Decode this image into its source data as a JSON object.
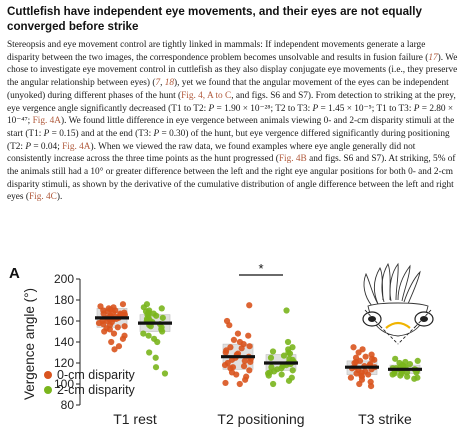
{
  "heading": "Cuttlefish have independent eye movements, and their eyes are not equally converged before strike",
  "paragraph": [
    {
      "t": "Stereopsis and eye movement control are tightly linked in mammals: If independent movements generate a large disparity between the two images, the correspondence problem becomes unsolvable and results in fusion failure ("
    },
    {
      "t": "17",
      "c": "lk it"
    },
    {
      "t": "). We chose to investigate eye movement control in cuttlefish as they also display conjugate eye movements (i.e., they preserve the angular relationship between eyes) ("
    },
    {
      "t": "7",
      "c": "lk it"
    },
    {
      "t": ", "
    },
    {
      "t": "18",
      "c": "lk it"
    },
    {
      "t": "), yet we found that the angular movement of the eyes can be independent (unyoked) during different phases of the hunt ("
    },
    {
      "t": "Fig. 4, A to C",
      "c": "lk"
    },
    {
      "t": ", and figs. S6 and S7). From detection to striking at the prey, eye vergence angle significantly decreased (T1 to T2: "
    },
    {
      "t": "P",
      "c": "it"
    },
    {
      "t": " = 1.90 × 10⁻²⁸; T2 to T3: "
    },
    {
      "t": "P",
      "c": "it"
    },
    {
      "t": " = 1.45 × 10⁻⁵; T1 to T3: "
    },
    {
      "t": "P",
      "c": "it"
    },
    {
      "t": " = 2.80 × 10⁻⁴⁷; "
    },
    {
      "t": "Fig. 4A",
      "c": "lk"
    },
    {
      "t": "). We found little difference in eye vergence between animals viewing 0- and 2-cm disparity stimuli at the start (T1: "
    },
    {
      "t": "P",
      "c": "it"
    },
    {
      "t": " = 0.15) and at the end (T3: "
    },
    {
      "t": "P",
      "c": "it"
    },
    {
      "t": " = 0.30) of the hunt, but eye vergence differed significantly during positioning (T2: "
    },
    {
      "t": "P",
      "c": "it"
    },
    {
      "t": " = 0.04; "
    },
    {
      "t": "Fig. 4A",
      "c": "lk"
    },
    {
      "t": "). When we viewed the raw data, we found examples where eye angle generally did not consistently increase across the three time points as the hunt progressed ("
    },
    {
      "t": "Fig. 4B",
      "c": "lk"
    },
    {
      "t": " and figs. S6 and S7). At striking, 5% of the animals still had a 10° or greater difference between the left and the right eye angular positions for both 0- and 2-cm disparity stimuli, as shown by the derivative of the cumulative distribution of angle difference between the left and right eyes ("
    },
    {
      "t": "Fig. 4C",
      "c": "lk"
    },
    {
      "t": ")."
    }
  ],
  "colors": {
    "orange": "#d9541e",
    "green": "#7ab51d",
    "box": "#d6d6d6",
    "text": "#1a1a1a"
  },
  "chart_data": {
    "type": "scatter",
    "panel_label": "A",
    "ylabel": "Vergence angle (°)",
    "ylim": [
      80,
      200
    ],
    "yticks": [
      80,
      100,
      120,
      140,
      160,
      180,
      200
    ],
    "categories": [
      "T1 rest",
      "T2 positioning",
      "T3 strike"
    ],
    "significance": {
      "between": "T2 positioning",
      "label": "*"
    },
    "legend_placement": "bottom-left",
    "series": [
      {
        "name": "0-cm disparity",
        "color": "#d9541e",
        "groups": [
          {
            "median": 163,
            "q1": 154,
            "q3": 172,
            "points": [
              176,
              174,
              173,
              172,
              171,
              170,
              170,
              169,
              168,
              168,
              167,
              167,
              166,
              166,
              165,
              165,
              164,
              164,
              163,
              163,
              162,
              162,
              161,
              160,
              160,
              159,
              158,
              157,
              156,
              155,
              154,
              153,
              152,
              150,
              148,
              146,
              143,
              140,
              136,
              133
            ]
          },
          {
            "median": 126,
            "q1": 114,
            "q3": 138,
            "points": [
              175,
              160,
              156,
              148,
              146,
              142,
              140,
              138,
              136,
              135,
              134,
              132,
              130,
              129,
              128,
              127,
              126,
              125,
              124,
              123,
              122,
              121,
              120,
              118,
              117,
              116,
              115,
              113,
              111,
              109,
              107,
              104,
              101,
              100
            ]
          },
          {
            "median": 116,
            "q1": 109,
            "q3": 122,
            "points": [
              135,
              133,
              130,
              128,
              126,
              125,
              124,
              123,
              122,
              121,
              120,
              119,
              118,
              117,
              116,
              116,
              115,
              114,
              113,
              112,
              111,
              110,
              109,
              108,
              107,
              106,
              104,
              102,
              100,
              98
            ]
          }
        ]
      },
      {
        "name": "2-cm disparity",
        "color": "#7ab51d",
        "groups": [
          {
            "median": 158,
            "q1": 150,
            "q3": 166,
            "points": [
              176,
              173,
              172,
              170,
              169,
              168,
              167,
              166,
              165,
              164,
              163,
              162,
              161,
              160,
              159,
              158,
              157,
              156,
              155,
              154,
              152,
              150,
              148,
              146,
              143,
              140,
              130,
              125,
              116,
              110
            ]
          },
          {
            "median": 120,
            "q1": 113,
            "q3": 128,
            "points": [
              170,
              140,
              135,
              133,
              131,
              130,
              129,
              127,
              125,
              124,
              123,
              121,
              120,
              119,
              118,
              117,
              116,
              115,
              114,
              113,
              112,
              111,
              110,
              109,
              108,
              106,
              103,
              100
            ]
          },
          {
            "median": 114,
            "q1": 110,
            "q3": 118,
            "points": [
              124,
              122,
              121,
              120,
              119,
              118,
              117,
              116,
              116,
              115,
              115,
              114,
              114,
              113,
              113,
              112,
              112,
              111,
              111,
              110,
              110,
              109,
              108,
              107,
              106,
              105
            ]
          }
        ]
      }
    ]
  }
}
